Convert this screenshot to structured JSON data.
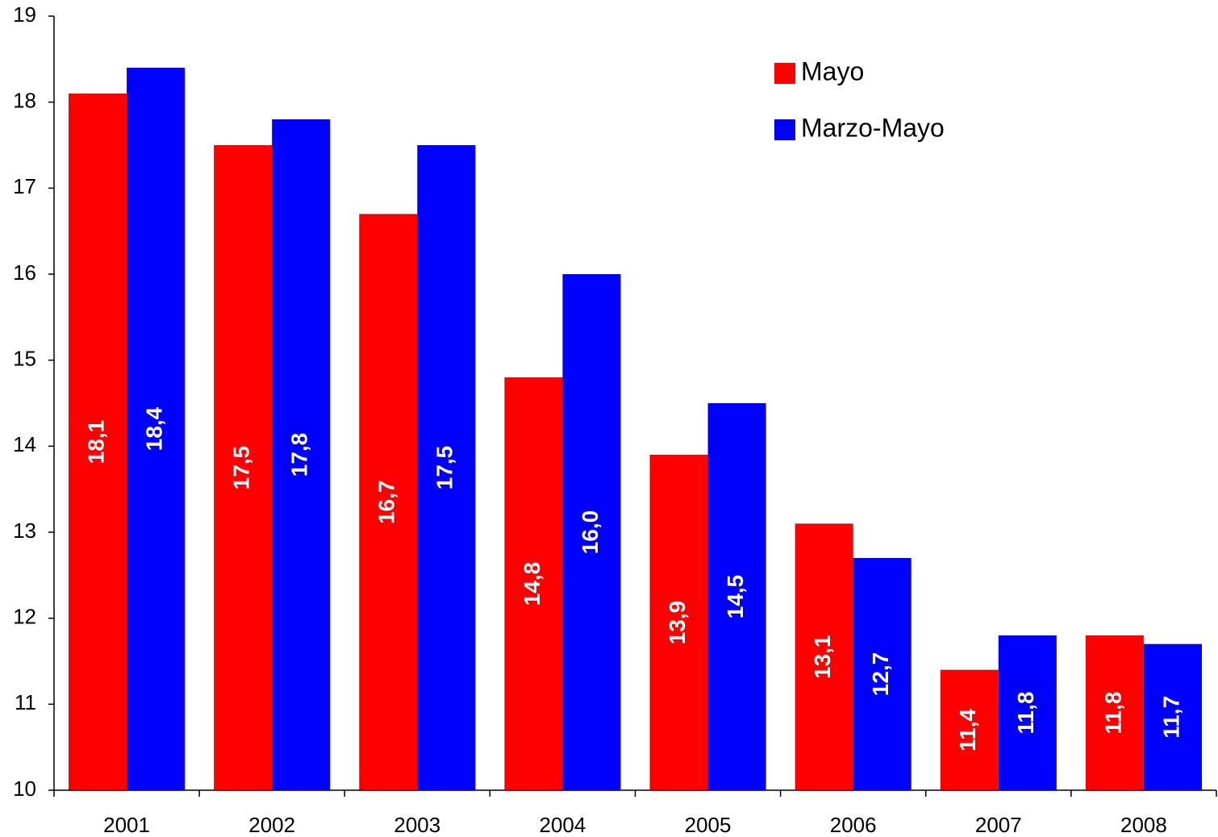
{
  "chart_data": {
    "type": "bar",
    "categories": [
      "2001",
      "2002",
      "2003",
      "2004",
      "2005",
      "2006",
      "2007",
      "2008"
    ],
    "series": [
      {
        "name": "Mayo",
        "color": "#ff0000",
        "values": [
          18.1,
          17.5,
          16.7,
          14.8,
          13.9,
          13.1,
          11.4,
          11.8
        ],
        "value_labels": [
          "18,1",
          "17,5",
          "16,7",
          "14,8",
          "13,9",
          "13,1",
          "11,4",
          "11,8"
        ]
      },
      {
        "name": "Marzo-Mayo",
        "color": "#0000ff",
        "values": [
          18.4,
          17.8,
          17.5,
          16.0,
          14.5,
          12.7,
          11.8,
          11.7
        ],
        "value_labels": [
          "18,4",
          "17,8",
          "17,5",
          "16,0",
          "14,5",
          "12,7",
          "11,8",
          "11,7"
        ]
      }
    ],
    "ylim": [
      10,
      19
    ],
    "yticks": [
      10,
      11,
      12,
      13,
      14,
      15,
      16,
      17,
      18,
      19
    ],
    "legend": "top-right"
  }
}
